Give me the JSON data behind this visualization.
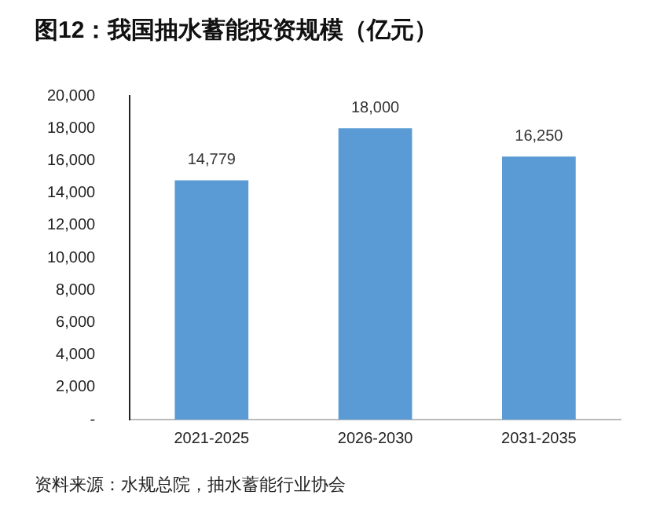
{
  "chart_data": {
    "type": "bar",
    "title": "图12：我国抽水蓄能投资规模（亿元）",
    "categories": [
      "2021-2025",
      "2026-2030",
      "2031-2035"
    ],
    "values": [
      14779,
      18000,
      16250
    ],
    "value_labels": [
      "14,779",
      "18,000",
      "16,250"
    ],
    "color": "#5b9bd5",
    "ylim": [
      0,
      20000
    ],
    "yticks": [
      {
        "value": 0,
        "label": "-"
      },
      {
        "value": 2000,
        "label": "2,000"
      },
      {
        "value": 4000,
        "label": "4,000"
      },
      {
        "value": 6000,
        "label": "6,000"
      },
      {
        "value": 8000,
        "label": "8,000"
      },
      {
        "value": 10000,
        "label": "10,000"
      },
      {
        "value": 12000,
        "label": "12,000"
      },
      {
        "value": 14000,
        "label": "14,000"
      },
      {
        "value": 16000,
        "label": "16,000"
      },
      {
        "value": 18000,
        "label": "18,000"
      },
      {
        "value": 20000,
        "label": "20,000"
      }
    ],
    "grid": false,
    "annotations": [
      "资料来源：水规总院，抽水蓄能行业协会"
    ]
  }
}
